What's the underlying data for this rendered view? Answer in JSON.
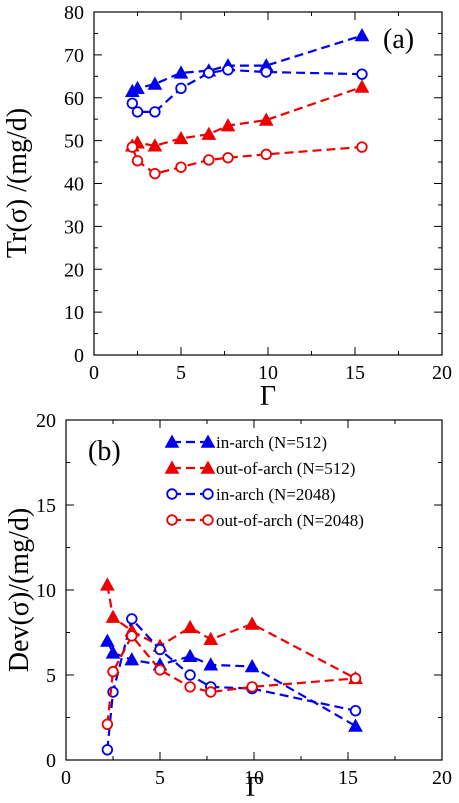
{
  "chart_data": [
    {
      "type": "line",
      "panel_label": "(a)",
      "xlabel": "Γ",
      "ylabel": "Tr(σ) /(mg/d)",
      "xlim": [
        0,
        20
      ],
      "ylim": [
        0,
        80
      ],
      "xticks": [
        0,
        5,
        10,
        15,
        20
      ],
      "yticks": [
        0,
        10,
        20,
        30,
        40,
        50,
        60,
        70,
        80
      ],
      "grid": false,
      "series": [
        {
          "color": "#0000ee",
          "marker": "filled-triangle",
          "x": [
            2.2,
            2.5,
            3.5,
            5.0,
            6.6,
            7.7,
            9.9,
            15.4
          ],
          "y": [
            61.5,
            62.2,
            63.2,
            65.8,
            66.3,
            67.5,
            67.5,
            74.5
          ]
        },
        {
          "color": "#0000ee",
          "marker": "open-circle",
          "x": [
            2.2,
            2.5,
            3.5,
            5.0,
            6.6,
            7.7,
            9.9,
            15.4
          ],
          "y": [
            58.7,
            56.7,
            56.7,
            62.2,
            65.8,
            66.5,
            66.0,
            65.5
          ]
        },
        {
          "color": "#ee0000",
          "marker": "filled-triangle",
          "x": [
            2.2,
            2.5,
            3.5,
            5.0,
            6.6,
            7.7,
            9.9,
            15.4
          ],
          "y": [
            48.8,
            49.5,
            48.8,
            50.5,
            51.5,
            53.5,
            54.8,
            62.5
          ]
        },
        {
          "color": "#ee0000",
          "marker": "open-circle",
          "x": [
            2.2,
            2.5,
            3.5,
            5.0,
            6.6,
            7.7,
            9.9,
            15.4
          ],
          "y": [
            48.5,
            45.3,
            42.3,
            43.8,
            45.5,
            46.0,
            46.8,
            48.5
          ]
        }
      ]
    },
    {
      "type": "line",
      "panel_label": "(b)",
      "xlabel": "Γ",
      "ylabel": "Dev(σ)/(mg/d)",
      "xlim": [
        0,
        20
      ],
      "ylim": [
        0,
        20
      ],
      "xticks": [
        0,
        5,
        10,
        15,
        20
      ],
      "yticks": [
        0,
        5,
        10,
        15,
        20
      ],
      "grid": false,
      "legend_position": "top-center",
      "series": [
        {
          "name": "in-arch (N=512)",
          "color": "#0000ee",
          "marker": "filled-triangle",
          "x": [
            2.2,
            2.5,
            3.5,
            5.0,
            6.6,
            7.7,
            9.9,
            15.4
          ],
          "y": [
            7.0,
            6.3,
            5.9,
            5.6,
            6.1,
            5.6,
            5.5,
            2.0
          ]
        },
        {
          "name": "out-of-arch (N=512)",
          "color": "#ee0000",
          "marker": "filled-triangle",
          "x": [
            2.2,
            2.5,
            3.5,
            5.0,
            6.6,
            7.7,
            9.9,
            15.4
          ],
          "y": [
            10.3,
            8.4,
            7.6,
            6.7,
            7.8,
            7.1,
            8.0,
            4.8
          ]
        },
        {
          "name": "in-arch (N=2048)",
          "color": "#0000ee",
          "marker": "open-circle",
          "x": [
            2.2,
            2.5,
            3.5,
            5.0,
            6.6,
            7.7,
            9.9,
            15.4
          ],
          "y": [
            0.6,
            4.0,
            8.3,
            6.5,
            5.0,
            4.3,
            4.2,
            2.9
          ]
        },
        {
          "name": "out-of-arch (N=2048)",
          "color": "#ee0000",
          "marker": "open-circle",
          "x": [
            2.2,
            2.5,
            3.5,
            5.0,
            6.6,
            7.7,
            9.9,
            15.4
          ],
          "y": [
            2.1,
            5.2,
            7.3,
            5.3,
            4.3,
            4.0,
            4.3,
            4.8
          ]
        }
      ]
    }
  ]
}
